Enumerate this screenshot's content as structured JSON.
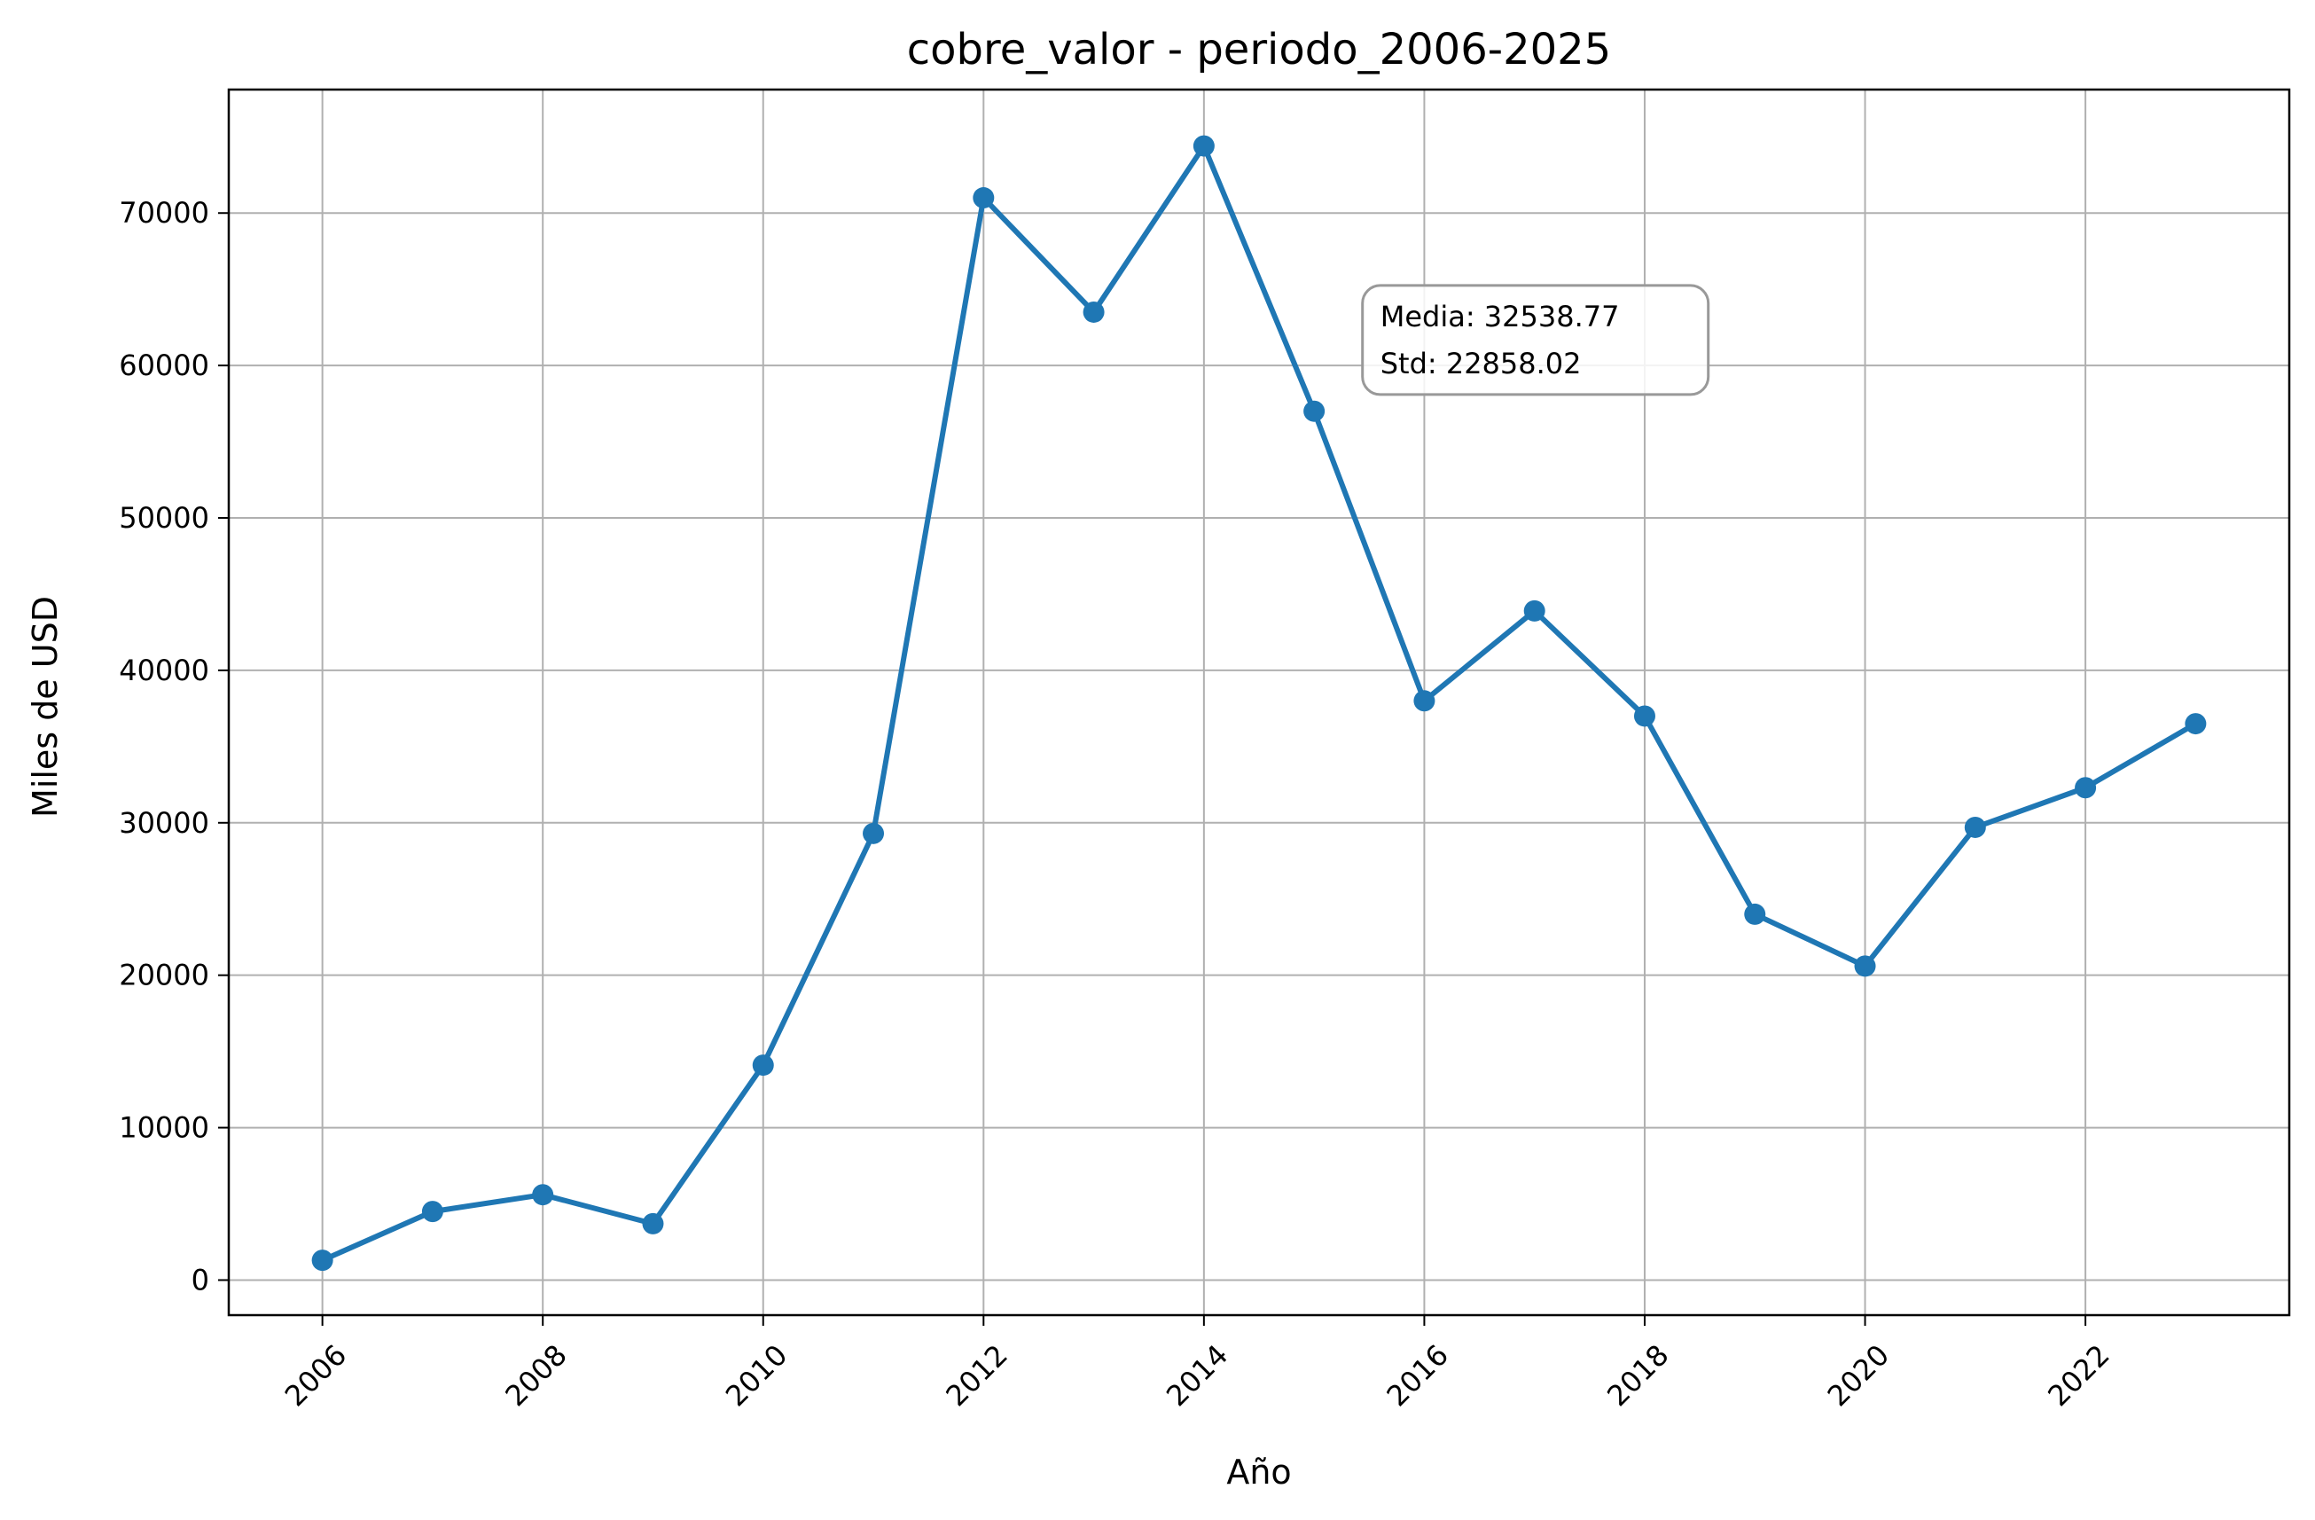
{
  "chart_data": {
    "type": "line",
    "title": "cobre_valor - periodo_2006-2025",
    "xlabel": "Año",
    "ylabel": "Miles de USD",
    "x": [
      2006,
      2007,
      2008,
      2009,
      2010,
      2011,
      2012,
      2013,
      2014,
      2015,
      2016,
      2017,
      2018,
      2019,
      2020,
      2021,
      2022,
      2023
    ],
    "series": [
      {
        "values": [
          1300,
          4500,
          5600,
          3700,
          14100,
          29300,
          71000,
          63500,
          74400,
          57000,
          38000,
          43900,
          37000,
          24000,
          20600,
          29700,
          32300,
          36500
        ],
        "color": "#1f77b4"
      }
    ],
    "xlim": [
      2005.15,
      2023.85
    ],
    "ylim": [
      -2300,
      78100
    ],
    "xticks": [
      "2006",
      "2008",
      "2010",
      "2012",
      "2014",
      "2016",
      "2018",
      "2020",
      "2022"
    ],
    "yticks": [
      "0",
      "10000",
      "20000",
      "30000",
      "40000",
      "50000",
      "60000",
      "70000"
    ],
    "grid": true,
    "annotation": {
      "lines": [
        "Media: 32538.77",
        "Std: 22858.02"
      ],
      "anchor": {
        "x": 2015.6,
        "y": 61000
      }
    }
  }
}
